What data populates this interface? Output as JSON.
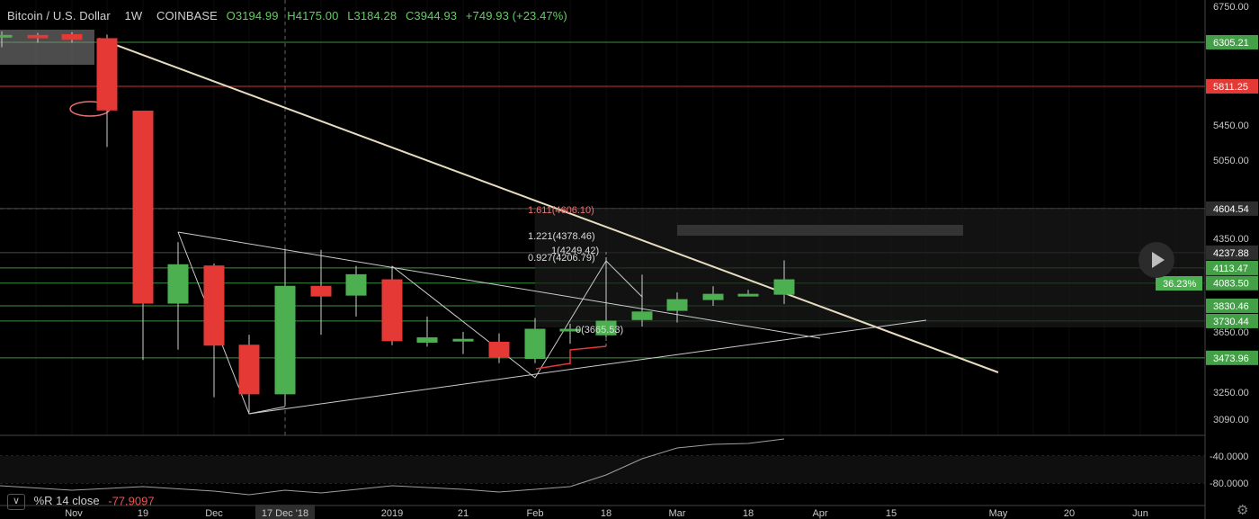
{
  "header": {
    "symbol": "Bitcoin / U.S. Dollar",
    "interval": "1W",
    "exchange": "COINBASE",
    "open": "O3194.99",
    "high": "H4175.00",
    "low": "L3184.28",
    "close": "C3944.93",
    "change": "+749.93 (+23.47%)"
  },
  "indicator": {
    "collapse_label": "∨",
    "name": "%R 14 close",
    "value": "-77.9097",
    "axis_labels": [
      "-40.0000",
      "-80.0000"
    ]
  },
  "colors": {
    "up": "#4caf50",
    "down": "#e53935",
    "trendline": "#e8dcc0",
    "level_line": "#43a047",
    "background": "#000000"
  },
  "chart_data": {
    "type": "candlestick",
    "interval": "1W",
    "price_axis_ticks": [
      "6750.00",
      "5450.00",
      "5050.00",
      "4350.00",
      "3650.00",
      "3250.00",
      "3090.00"
    ],
    "time_axis_labels": [
      "Nov",
      "19",
      "Dec",
      "17 Dec '18",
      "2019",
      "21",
      "Feb",
      "18",
      "Mar",
      "18",
      "Apr",
      "15",
      "May",
      "20",
      "Jun"
    ],
    "candles": [
      {
        "o": 6380,
        "h": 6440,
        "l": 6250,
        "c": 6390
      },
      {
        "o": 6390,
        "h": 6420,
        "l": 6300,
        "c": 6360
      },
      {
        "o": 6400,
        "h": 6430,
        "l": 6300,
        "c": 6340
      },
      {
        "o": 6350,
        "h": 6400,
        "l": 5200,
        "c": 5590
      },
      {
        "o": 5580,
        "h": 5580,
        "l": 3460,
        "c": 3860
      },
      {
        "o": 3860,
        "h": 4320,
        "l": 3530,
        "c": 4140
      },
      {
        "o": 4130,
        "h": 4150,
        "l": 3220,
        "c": 3560
      },
      {
        "o": 3560,
        "h": 3630,
        "l": 3130,
        "c": 3240
      },
      {
        "o": 3240,
        "h": 4270,
        "l": 3170,
        "c": 4050
      },
      {
        "o": 4050,
        "h": 4260,
        "l": 3630,
        "c": 3940
      },
      {
        "o": 3950,
        "h": 4130,
        "l": 3760,
        "c": 4100
      },
      {
        "o": 4090,
        "h": 4130,
        "l": 3560,
        "c": 3590
      },
      {
        "o": 3580,
        "h": 3760,
        "l": 3550,
        "c": 3610
      },
      {
        "o": 3590,
        "h": 3650,
        "l": 3500,
        "c": 3600
      },
      {
        "o": 3580,
        "h": 3640,
        "l": 3440,
        "c": 3480
      },
      {
        "o": 3470,
        "h": 3750,
        "l": 3440,
        "c": 3670
      },
      {
        "o": 3670,
        "h": 3710,
        "l": 3570,
        "c": 3670
      },
      {
        "o": 3630,
        "h": 4200,
        "l": 3610,
        "c": 3730
      },
      {
        "o": 3740,
        "h": 4100,
        "l": 3690,
        "c": 3790
      },
      {
        "o": 3800,
        "h": 3980,
        "l": 3720,
        "c": 3900
      },
      {
        "o": 3900,
        "h": 4050,
        "l": 3830,
        "c": 3960
      },
      {
        "o": 3960,
        "h": 4010,
        "l": 3950,
        "c": 3960
      },
      {
        "o": 3960,
        "h": 4175,
        "l": 3850,
        "c": 4090
      }
    ],
    "price_levels": [
      {
        "value": "6305.21",
        "color": "#43a047"
      },
      {
        "value": "5811.25",
        "color": "#e53935"
      },
      {
        "value": "4604.54",
        "color": "#555555"
      },
      {
        "value": "4237.88",
        "color": "#555555"
      },
      {
        "value": "4113.47",
        "color": "#43a047"
      },
      {
        "value": "4083.50",
        "color": "#43a047"
      },
      {
        "value": "3830.46",
        "color": "#43a047"
      },
      {
        "value": "3730.44",
        "color": "#43a047"
      },
      {
        "value": "3473.96",
        "color": "#43a047"
      }
    ],
    "price_change_badge": "36.23%",
    "fib_labels": [
      "1.611(4606.10)",
      "1.221(4378.46)",
      "1(4249.42)",
      "0.927(4206.79)",
      "0(3665.53)"
    ],
    "williams_r": {
      "name": "%R 14 close",
      "last": -77.9097
    }
  }
}
